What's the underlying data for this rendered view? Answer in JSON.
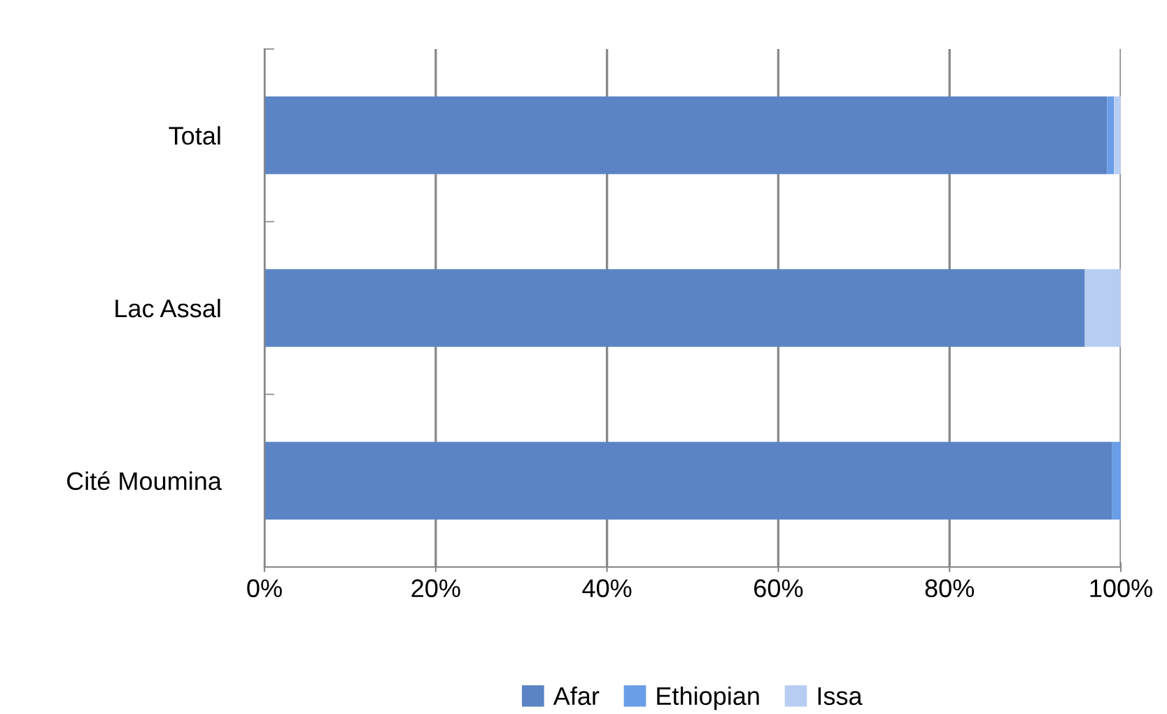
{
  "chart_data": {
    "type": "bar",
    "orientation": "horizontal",
    "stacked": true,
    "categories": [
      "Total",
      "Lac Assal",
      "Cité Moumina"
    ],
    "series": [
      {
        "name": "Afar",
        "color": "#5b84c4",
        "values": [
          98.4,
          95.8,
          99.0
        ]
      },
      {
        "name": "Ethiopian",
        "color": "#6a9ee8",
        "values": [
          0.8,
          0,
          1.0
        ]
      },
      {
        "name": "Issa",
        "color": "#b8cdf2",
        "values": [
          0.8,
          4.2,
          0
        ]
      }
    ],
    "xlim": [
      0,
      100
    ],
    "xticks": [
      {
        "value": 0,
        "label": "0%"
      },
      {
        "value": 20,
        "label": "20%"
      },
      {
        "value": 40,
        "label": "40%"
      },
      {
        "value": 60,
        "label": "60%"
      },
      {
        "value": 80,
        "label": "80%"
      },
      {
        "value": 100,
        "label": "100%"
      }
    ],
    "grid": "x",
    "legend": "bottom"
  }
}
